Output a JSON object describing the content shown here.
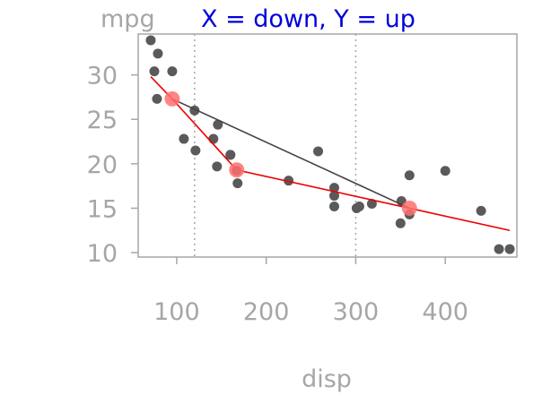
{
  "chart_data": {
    "type": "scatter",
    "title": "X = down, Y = up",
    "xlabel": "disp",
    "ylabel": "mpg",
    "xlim": [
      57,
      480
    ],
    "ylim": [
      9.5,
      34.6
    ],
    "x_ticks": [
      100,
      200,
      300,
      400
    ],
    "y_ticks": [
      10,
      15,
      20,
      25,
      30
    ],
    "grid": false,
    "vlines": [
      120,
      300
    ],
    "points": [
      {
        "x": 71,
        "y": 33.9
      },
      {
        "x": 79,
        "y": 32.4
      },
      {
        "x": 75,
        "y": 30.4
      },
      {
        "x": 95,
        "y": 30.4
      },
      {
        "x": 78,
        "y": 27.3
      },
      {
        "x": 120,
        "y": 26.0
      },
      {
        "x": 108,
        "y": 22.8
      },
      {
        "x": 141,
        "y": 22.8
      },
      {
        "x": 146,
        "y": 24.4
      },
      {
        "x": 121,
        "y": 21.5
      },
      {
        "x": 160,
        "y": 21.0
      },
      {
        "x": 160,
        "y": 21.0
      },
      {
        "x": 258,
        "y": 21.4
      },
      {
        "x": 225,
        "y": 18.1
      },
      {
        "x": 145,
        "y": 19.7
      },
      {
        "x": 167,
        "y": 19.2
      },
      {
        "x": 168,
        "y": 17.8
      },
      {
        "x": 276,
        "y": 17.3
      },
      {
        "x": 276,
        "y": 16.4
      },
      {
        "x": 276,
        "y": 15.2
      },
      {
        "x": 301,
        "y": 15.0
      },
      {
        "x": 304,
        "y": 15.2
      },
      {
        "x": 318,
        "y": 15.5
      },
      {
        "x": 351,
        "y": 15.8
      },
      {
        "x": 350,
        "y": 13.3
      },
      {
        "x": 360,
        "y": 14.3
      },
      {
        "x": 360,
        "y": 18.7
      },
      {
        "x": 400,
        "y": 19.2
      },
      {
        "x": 440,
        "y": 14.7
      },
      {
        "x": 460,
        "y": 10.4
      },
      {
        "x": 472,
        "y": 10.4
      }
    ],
    "series": [
      {
        "type": "line",
        "color": "#ee0000",
        "x": [
          71,
          95,
          167,
          360,
          472
        ],
        "y": [
          29.8,
          27.3,
          19.3,
          15.0,
          12.5
        ]
      },
      {
        "type": "line",
        "color": "#444444",
        "x": [
          95,
          360
        ],
        "y": [
          27.3,
          15.0
        ]
      }
    ],
    "highlight_points": [
      {
        "x": 95,
        "y": 27.3
      },
      {
        "x": 167,
        "y": 19.3
      },
      {
        "x": 360,
        "y": 15.0
      }
    ],
    "colors": {
      "points": "#5a5a5a",
      "highlight": "#ff7070",
      "frame": "#a6a6a6",
      "vlines": "#a6a6a6",
      "text": "#a6a6a6",
      "title": "#0000dd"
    }
  }
}
